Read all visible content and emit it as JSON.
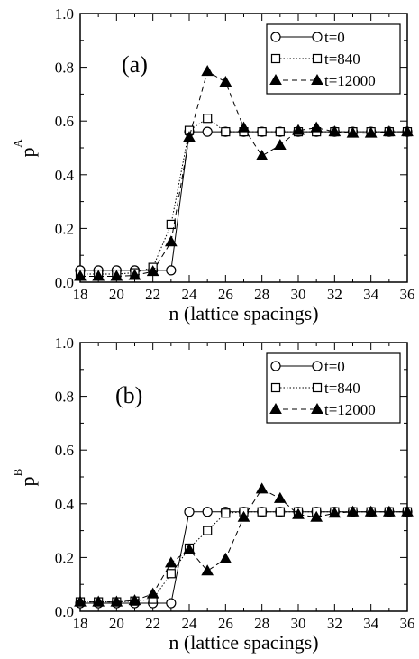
{
  "chart_data": [
    {
      "type": "line",
      "panel_tag": "(a)",
      "ylabel": "p",
      "ylabel_superscript": "A",
      "xlabel": "n (lattice spacings)",
      "xlim": [
        18,
        36
      ],
      "ylim": [
        0.0,
        1.0
      ],
      "xticks": [
        "18",
        "20",
        "22",
        "24",
        "26",
        "28",
        "30",
        "32",
        "34",
        "36"
      ],
      "yticks": [
        "0.0",
        "0.2",
        "0.4",
        "0.6",
        "0.8",
        "1.0"
      ],
      "legend_position": "top-right",
      "x": [
        18,
        19,
        20,
        21,
        22,
        23,
        24,
        25,
        26,
        27,
        28,
        29,
        30,
        31,
        32,
        33,
        34,
        35,
        36
      ],
      "series": [
        {
          "name": "t=0",
          "marker": "open-circle",
          "line": "solid",
          "values": [
            0.044,
            0.044,
            0.044,
            0.044,
            0.044,
            0.044,
            0.56,
            0.56,
            0.56,
            0.56,
            0.56,
            0.56,
            0.56,
            0.56,
            0.56,
            0.56,
            0.56,
            0.56,
            0.56
          ]
        },
        {
          "name": "t=840",
          "marker": "open-square",
          "line": "dotted",
          "values": [
            0.03,
            0.03,
            0.03,
            0.035,
            0.055,
            0.215,
            0.565,
            0.61,
            0.56,
            0.56,
            0.56,
            0.56,
            0.56,
            0.56,
            0.56,
            0.56,
            0.56,
            0.56,
            0.56
          ]
        },
        {
          "name": "t=12000",
          "marker": "filled-triangle",
          "line": "dashed",
          "values": [
            0.022,
            0.022,
            0.022,
            0.025,
            0.04,
            0.15,
            0.54,
            0.785,
            0.745,
            0.575,
            0.47,
            0.51,
            0.565,
            0.575,
            0.56,
            0.555,
            0.555,
            0.56,
            0.56
          ]
        }
      ]
    },
    {
      "type": "line",
      "panel_tag": "(b)",
      "ylabel": "p",
      "ylabel_superscript": "B",
      "xlabel": "n (lattice spacings)",
      "xlim": [
        18,
        36
      ],
      "ylim": [
        0.0,
        1.0
      ],
      "xticks": [
        "18",
        "20",
        "22",
        "24",
        "26",
        "28",
        "30",
        "32",
        "34",
        "36"
      ],
      "yticks": [
        "0.0",
        "0.2",
        "0.4",
        "0.6",
        "0.8",
        "1.0"
      ],
      "legend_position": "top-right",
      "x": [
        18,
        19,
        20,
        21,
        22,
        23,
        24,
        25,
        26,
        27,
        28,
        29,
        30,
        31,
        32,
        33,
        34,
        35,
        36
      ],
      "series": [
        {
          "name": "t=0",
          "marker": "open-circle",
          "line": "solid",
          "values": [
            0.03,
            0.03,
            0.03,
            0.03,
            0.03,
            0.03,
            0.37,
            0.37,
            0.37,
            0.37,
            0.37,
            0.37,
            0.37,
            0.37,
            0.37,
            0.37,
            0.37,
            0.37,
            0.37
          ]
        },
        {
          "name": "t=840",
          "marker": "open-square",
          "line": "dotted",
          "values": [
            0.035,
            0.035,
            0.035,
            0.038,
            0.045,
            0.14,
            0.235,
            0.3,
            0.365,
            0.37,
            0.37,
            0.37,
            0.37,
            0.37,
            0.37,
            0.37,
            0.37,
            0.37,
            0.37
          ]
        },
        {
          "name": "t=12000",
          "marker": "filled-triangle",
          "line": "dashed",
          "values": [
            0.035,
            0.035,
            0.035,
            0.04,
            0.065,
            0.18,
            0.23,
            0.15,
            0.195,
            0.35,
            0.455,
            0.42,
            0.36,
            0.35,
            0.365,
            0.37,
            0.37,
            0.37,
            0.37
          ]
        }
      ]
    }
  ]
}
